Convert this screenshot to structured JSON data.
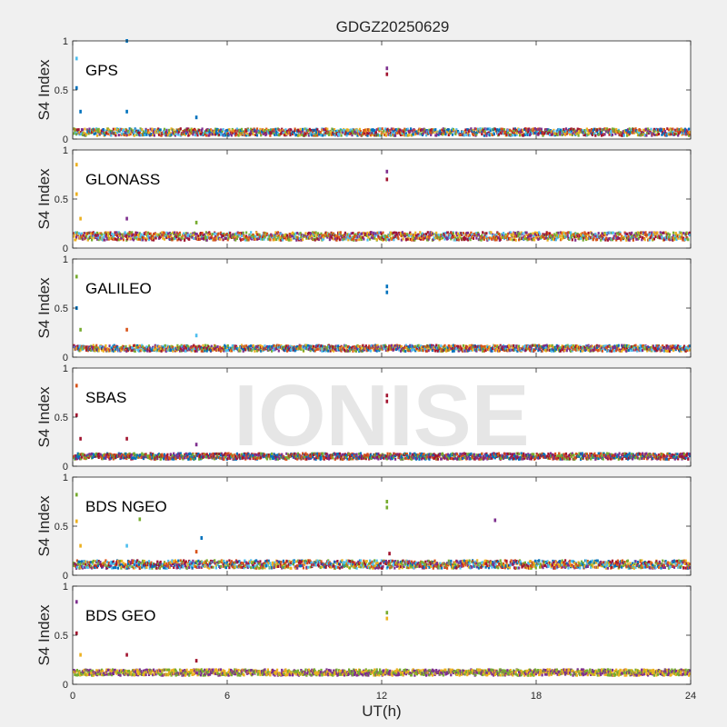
{
  "figure": {
    "title": "GDGZ20250629",
    "xlabel": "UT(h)",
    "watermark": "IONISE",
    "x_ticks": [
      "0",
      "6",
      "12",
      "18",
      "24"
    ]
  },
  "colors": {
    "blue": "#0072bd",
    "orange": "#d95319",
    "yellow": "#edb120",
    "purple": "#7e2f8e",
    "green": "#77ac30",
    "cyan": "#4dbeee",
    "maroon": "#a2142f"
  },
  "chart_data": [
    {
      "type": "scatter",
      "label": "GPS",
      "ylabel": "S4 Index",
      "xlim": [
        0,
        24
      ],
      "ylim": [
        0,
        1
      ],
      "y_ticks": [
        "0",
        "0.5",
        "1"
      ],
      "grid": false,
      "series_colors": [
        "blue",
        "orange",
        "yellow",
        "purple",
        "green",
        "cyan",
        "maroon"
      ],
      "baseline": 0.07,
      "spread": 0.035,
      "outliers": [
        {
          "x": 0.15,
          "y": 0.82,
          "c": "cyan"
        },
        {
          "x": 0.15,
          "y": 0.52,
          "c": "blue"
        },
        {
          "x": 0.3,
          "y": 0.28,
          "c": "blue"
        },
        {
          "x": 2.1,
          "y": 1.0,
          "c": "blue"
        },
        {
          "x": 2.1,
          "y": 0.28,
          "c": "blue"
        },
        {
          "x": 4.8,
          "y": 0.22,
          "c": "blue"
        },
        {
          "x": 12.2,
          "y": 0.72,
          "c": "purple"
        },
        {
          "x": 12.2,
          "y": 0.66,
          "c": "maroon"
        }
      ]
    },
    {
      "type": "scatter",
      "label": "GLONASS",
      "ylabel": "S4 Index",
      "xlim": [
        0,
        24
      ],
      "ylim": [
        0,
        1
      ],
      "y_ticks": [
        "0",
        "0.5",
        "1"
      ],
      "grid": false,
      "series_colors": [
        "purple",
        "green",
        "yellow",
        "maroon",
        "cyan",
        "orange"
      ],
      "baseline": 0.12,
      "spread": 0.04,
      "outliers": [
        {
          "x": 0.15,
          "y": 0.85,
          "c": "yellow"
        },
        {
          "x": 0.15,
          "y": 0.55,
          "c": "yellow"
        },
        {
          "x": 0.3,
          "y": 0.3,
          "c": "yellow"
        },
        {
          "x": 2.1,
          "y": 0.3,
          "c": "purple"
        },
        {
          "x": 4.8,
          "y": 0.26,
          "c": "green"
        },
        {
          "x": 12.2,
          "y": 0.78,
          "c": "purple"
        },
        {
          "x": 12.2,
          "y": 0.7,
          "c": "maroon"
        }
      ]
    },
    {
      "type": "scatter",
      "label": "GALILEO",
      "ylabel": "S4 Index",
      "xlim": [
        0,
        24
      ],
      "ylim": [
        0,
        1
      ],
      "y_ticks": [
        "0",
        "0.5",
        "1"
      ],
      "grid": false,
      "series_colors": [
        "orange",
        "blue",
        "yellow",
        "purple",
        "cyan",
        "green",
        "maroon"
      ],
      "baseline": 0.09,
      "spread": 0.03,
      "outliers": [
        {
          "x": 0.15,
          "y": 0.82,
          "c": "green"
        },
        {
          "x": 0.15,
          "y": 0.5,
          "c": "blue"
        },
        {
          "x": 0.3,
          "y": 0.28,
          "c": "green"
        },
        {
          "x": 2.1,
          "y": 0.28,
          "c": "orange"
        },
        {
          "x": 4.8,
          "y": 0.22,
          "c": "cyan"
        },
        {
          "x": 12.2,
          "y": 0.72,
          "c": "blue"
        },
        {
          "x": 12.2,
          "y": 0.66,
          "c": "blue"
        }
      ]
    },
    {
      "type": "scatter",
      "label": "SBAS",
      "ylabel": "S4 Index",
      "xlim": [
        0,
        24
      ],
      "ylim": [
        0,
        1
      ],
      "y_ticks": [
        "0",
        "0.5",
        "1"
      ],
      "grid": false,
      "series_colors": [
        "green",
        "blue",
        "maroon",
        "purple",
        "orange"
      ],
      "baseline": 0.1,
      "spread": 0.03,
      "outliers": [
        {
          "x": 0.15,
          "y": 0.82,
          "c": "orange"
        },
        {
          "x": 0.15,
          "y": 0.52,
          "c": "maroon"
        },
        {
          "x": 0.3,
          "y": 0.28,
          "c": "maroon"
        },
        {
          "x": 2.1,
          "y": 0.28,
          "c": "maroon"
        },
        {
          "x": 4.8,
          "y": 0.22,
          "c": "purple"
        },
        {
          "x": 12.2,
          "y": 0.72,
          "c": "maroon"
        },
        {
          "x": 12.2,
          "y": 0.66,
          "c": "maroon"
        }
      ]
    },
    {
      "type": "scatter",
      "label": "BDS NGEO",
      "ylabel": "S4 Index",
      "xlim": [
        0,
        24
      ],
      "ylim": [
        0,
        1
      ],
      "y_ticks": [
        "0",
        "0.5",
        "1"
      ],
      "grid": false,
      "series_colors": [
        "cyan",
        "orange",
        "yellow",
        "green",
        "purple",
        "maroon",
        "blue"
      ],
      "baseline": 0.11,
      "spread": 0.04,
      "outliers": [
        {
          "x": 0.15,
          "y": 0.82,
          "c": "green"
        },
        {
          "x": 0.15,
          "y": 0.55,
          "c": "yellow"
        },
        {
          "x": 0.3,
          "y": 0.3,
          "c": "yellow"
        },
        {
          "x": 2.1,
          "y": 0.3,
          "c": "cyan"
        },
        {
          "x": 2.6,
          "y": 0.57,
          "c": "green"
        },
        {
          "x": 4.8,
          "y": 0.24,
          "c": "orange"
        },
        {
          "x": 5.0,
          "y": 0.38,
          "c": "blue"
        },
        {
          "x": 12.2,
          "y": 0.75,
          "c": "green"
        },
        {
          "x": 12.2,
          "y": 0.69,
          "c": "green"
        },
        {
          "x": 12.3,
          "y": 0.22,
          "c": "maroon"
        },
        {
          "x": 16.4,
          "y": 0.56,
          "c": "purple"
        }
      ]
    },
    {
      "type": "scatter",
      "label": "BDS GEO",
      "ylabel": "S4 Index",
      "xlim": [
        0,
        24
      ],
      "ylim": [
        0,
        1
      ],
      "y_ticks": [
        "0",
        "0.5",
        "1"
      ],
      "grid": false,
      "series_colors": [
        "yellow",
        "purple",
        "green"
      ],
      "baseline": 0.12,
      "spread": 0.03,
      "outliers": [
        {
          "x": 0.15,
          "y": 0.84,
          "c": "purple"
        },
        {
          "x": 0.15,
          "y": 0.52,
          "c": "maroon"
        },
        {
          "x": 0.3,
          "y": 0.3,
          "c": "yellow"
        },
        {
          "x": 2.1,
          "y": 0.3,
          "c": "maroon"
        },
        {
          "x": 4.8,
          "y": 0.24,
          "c": "maroon"
        },
        {
          "x": 12.2,
          "y": 0.73,
          "c": "green"
        },
        {
          "x": 12.2,
          "y": 0.67,
          "c": "yellow"
        }
      ]
    }
  ]
}
